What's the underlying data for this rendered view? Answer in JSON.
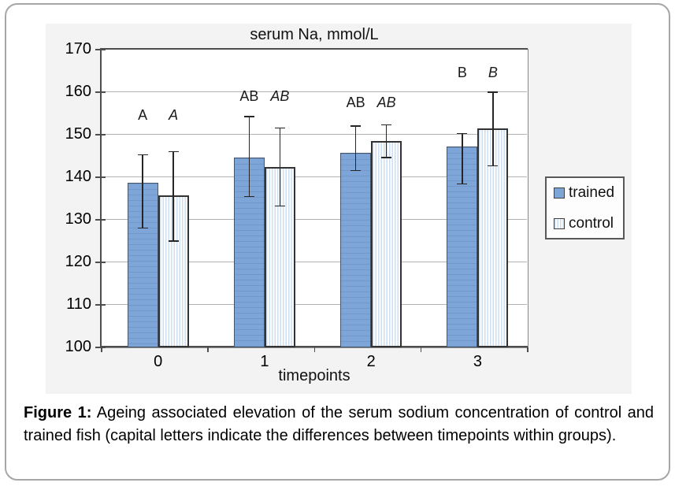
{
  "figure": {
    "caption_label": "Figure 1:",
    "caption_text": "Ageing associated elevation of the serum sodium concentration of control and trained fish (capital letters indicate the differences between timepoints within groups)."
  },
  "legend": {
    "items": [
      {
        "label": "trained",
        "swatch": "trained-swatch"
      },
      {
        "label": "control",
        "swatch": "control-swatch"
      }
    ]
  },
  "colors": {
    "trained_fill": "#7da5d7",
    "control_stripe": "#cddff2",
    "trained_border": "#45566b",
    "control_border": "#333333",
    "error_bar": "#262626",
    "gridline": "#b3b3b3",
    "axis": "#4d4d4d",
    "chart_background": "#f3f3f3",
    "page_border": "#a6a6a6"
  },
  "chart_data": {
    "type": "bar",
    "title": "serum Na, mmol/L",
    "xlabel": "timepoints",
    "ylabel": "",
    "categories": [
      "0",
      "1",
      "2",
      "3"
    ],
    "ylim": [
      100,
      170
    ],
    "yticks": [
      100,
      110,
      120,
      130,
      140,
      150,
      160,
      170
    ],
    "grid": "horizontal",
    "legend_position": "right",
    "bars_baseline": 100,
    "series": [
      {
        "name": "trained",
        "values": [
          138.5,
          144.5,
          145.5,
          147
        ],
        "error_low": [
          128,
          135.4,
          141.5,
          138.4
        ],
        "error_high": [
          145.2,
          154.2,
          152,
          150.2
        ],
        "letters": [
          "A",
          "AB",
          "AB",
          "B"
        ],
        "letters_italic": false
      },
      {
        "name": "control",
        "values": [
          135.5,
          142.3,
          148.4,
          151.3
        ],
        "error_low": [
          125,
          133.2,
          144.6,
          142.6
        ],
        "error_high": [
          146,
          151.5,
          152.3,
          160
        ],
        "letters": [
          "A",
          "AB",
          "AB",
          "B"
        ],
        "letters_italic": true
      }
    ],
    "letter_y": [
      154,
      158.5,
      157,
      164
    ]
  }
}
